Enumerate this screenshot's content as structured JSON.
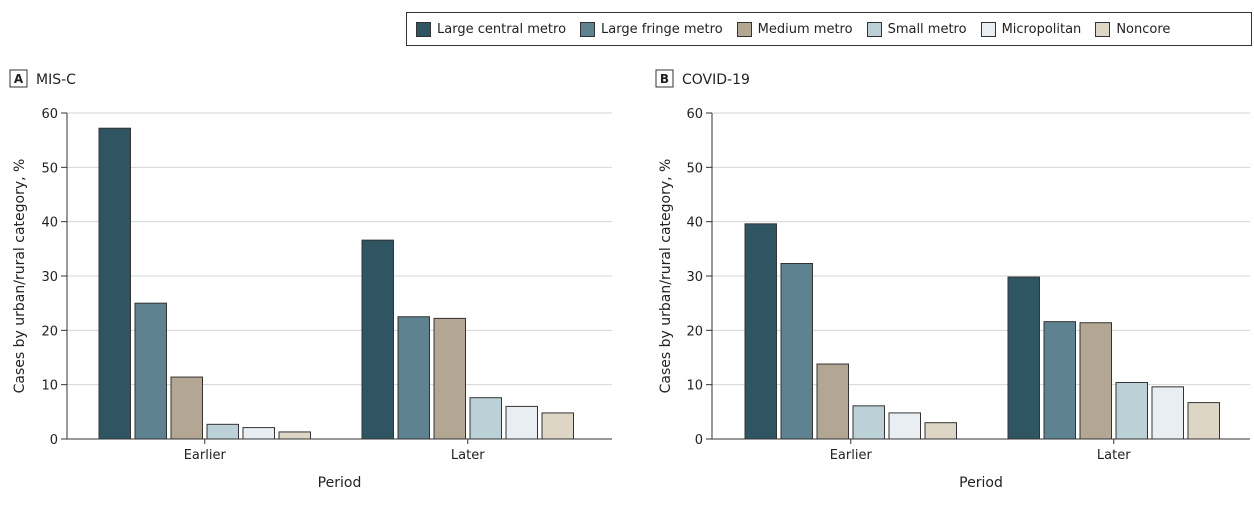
{
  "legend": [
    {
      "name": "Large central metro",
      "color": "#2f5563"
    },
    {
      "name": "Large fringe metro",
      "color": "#5e8290"
    },
    {
      "name": "Medium metro",
      "color": "#b3a693"
    },
    {
      "name": "Small metro",
      "color": "#bcd0d8"
    },
    {
      "name": "Micropolitan",
      "color": "#e8eef1"
    },
    {
      "name": "Noncore",
      "color": "#ddd5c6"
    }
  ],
  "chart_data": [
    {
      "type": "bar",
      "panel_letter": "A",
      "title": "MIS-C",
      "categories": [
        "Earlier",
        "Later"
      ],
      "xlabel": "Period",
      "ylabel": "Cases by urban/rural category, %",
      "ylim": [
        0,
        60
      ],
      "yticks": [
        0,
        10,
        20,
        30,
        40,
        50,
        60
      ],
      "grid": true,
      "series": [
        {
          "name": "Large central metro",
          "values": [
            57.2,
            36.6
          ]
        },
        {
          "name": "Large fringe metro",
          "values": [
            25.0,
            22.5
          ]
        },
        {
          "name": "Medium metro",
          "values": [
            11.4,
            22.2
          ]
        },
        {
          "name": "Small metro",
          "values": [
            2.7,
            7.6
          ]
        },
        {
          "name": "Micropolitan",
          "values": [
            2.1,
            6.0
          ]
        },
        {
          "name": "Noncore",
          "values": [
            1.3,
            4.8
          ]
        }
      ]
    },
    {
      "type": "bar",
      "panel_letter": "B",
      "title": "COVID-19",
      "categories": [
        "Earlier",
        "Later"
      ],
      "xlabel": "Period",
      "ylabel": "Cases by urban/rural category, %",
      "ylim": [
        0,
        60
      ],
      "yticks": [
        0,
        10,
        20,
        30,
        40,
        50,
        60
      ],
      "grid": true,
      "series": [
        {
          "name": "Large central metro",
          "values": [
            39.6,
            29.8
          ]
        },
        {
          "name": "Large fringe metro",
          "values": [
            32.3,
            21.6
          ]
        },
        {
          "name": "Medium metro",
          "values": [
            13.8,
            21.4
          ]
        },
        {
          "name": "Small metro",
          "values": [
            6.1,
            10.4
          ]
        },
        {
          "name": "Micropolitan",
          "values": [
            4.8,
            9.6
          ]
        },
        {
          "name": "Noncore",
          "values": [
            3.0,
            6.7
          ]
        }
      ]
    }
  ]
}
